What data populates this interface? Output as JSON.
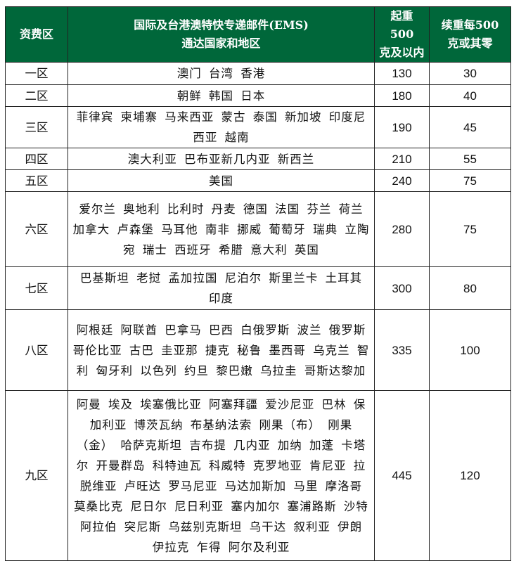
{
  "header": {
    "zone": "资费区",
    "countries_line1": "国际及台港澳特快专递邮件(EMS)",
    "countries_line2": "通达国家和地区",
    "first_line1": "起重500",
    "first_line2": "克及以内",
    "additional_line1": "续重每500",
    "additional_line2": "克或其零"
  },
  "header_color": "#00673a",
  "rows": [
    {
      "zone": "一区",
      "countries": "澳门 台湾 香港",
      "first": "130",
      "additional": "30"
    },
    {
      "zone": "二区",
      "countries": "朝鲜 韩国 日本",
      "first": "180",
      "additional": "40"
    },
    {
      "zone": "三区",
      "countries": "菲律宾 柬埔寨 马来西亚 蒙古 泰国 新加坡 印度尼西亚 越南",
      "first": "190",
      "additional": "45"
    },
    {
      "zone": "四区",
      "countries": "澳大利亚 巴布亚新几内亚  新西兰",
      "first": "210",
      "additional": "55"
    },
    {
      "zone": "五区",
      "countries": "美国",
      "first": "240",
      "additional": "75"
    },
    {
      "zone": "六区",
      "countries": "爱尔兰 奥地利 比利时 丹麦 德国 法国 芬兰 荷兰 加拿大 卢森堡 马耳他 南非 挪威  葡萄牙 瑞典 立陶宛 瑞士 西班牙 希腊 意大利 英国",
      "first": "280",
      "additional": "75"
    },
    {
      "zone": "七区",
      "countries": "巴基斯坦 老挝 孟加拉国 尼泊尔 斯里兰卡 土耳其 印度",
      "first": "300",
      "additional": "80"
    },
    {
      "zone": "八区",
      "countries": "阿根廷 阿联酋 巴拿马 巴西 白俄罗斯 波兰 俄罗斯 哥伦比亚 古巴 圭亚那 捷克 秘鲁 墨西哥 乌克兰 智利 匈牙利 以色列 约旦 黎巴嫩 乌拉圭 哥斯达黎加",
      "first": "335",
      "additional": "100"
    },
    {
      "zone": "九区",
      "countries": "阿曼 埃及 埃塞俄比亚 阿塞拜疆 爱沙尼亚 巴林 保加利亚 博茨瓦纳 布基纳法索 刚果（布） 刚果（金） 哈萨克斯坦 吉布提 几内亚 加纳 加蓬 卡塔尔 开曼群岛 科特迪瓦 科威特 克罗地亚 肯尼亚 拉脱维亚 卢旺达 罗马尼亚 马达加斯加 马里 摩洛哥 莫桑比克 尼日尔 尼日利亚 塞内加尔 塞浦路斯 沙特阿拉伯 突尼斯 乌兹别克斯坦  乌干达 叙利亚 伊朗 伊拉克 乍得 阿尔及利亚",
      "first": "445",
      "additional": "120"
    }
  ]
}
